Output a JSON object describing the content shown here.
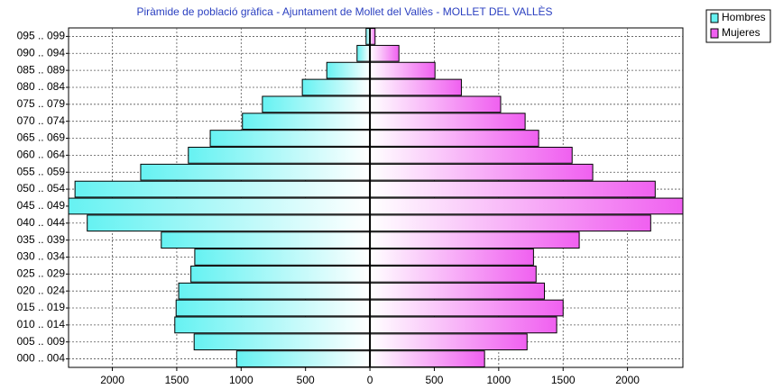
{
  "chart_data": {
    "type": "pyramid",
    "title": "Piràmide de població gràfica - Ajuntament de Mollet del Vallès - MOLLET DEL VALLÈS",
    "categories": [
      "095 .. 099",
      "090 .. 094",
      "085 .. 089",
      "080 .. 084",
      "075 .. 079",
      "070 .. 074",
      "065 .. 069",
      "060 .. 064",
      "055 .. 059",
      "050 .. 054",
      "045 .. 049",
      "040 .. 044",
      "035 .. 039",
      "030 .. 034",
      "025 .. 029",
      "020 .. 024",
      "015 .. 019",
      "010 .. 014",
      "005 .. 009",
      "000 .. 004"
    ],
    "series": [
      {
        "name": "Hombres",
        "color": "#66f2f2",
        "values": [
          -30,
          -100,
          -335,
          -525,
          -835,
          -990,
          -1240,
          -1410,
          -1780,
          -2290,
          -2340,
          -2195,
          -1620,
          -1360,
          -1390,
          -1485,
          -1505,
          -1515,
          -1365,
          -1035
        ]
      },
      {
        "name": "Mujeres",
        "color": "#f060f0",
        "values": [
          40,
          225,
          505,
          710,
          1015,
          1205,
          1310,
          1570,
          1730,
          2215,
          2430,
          2180,
          1625,
          1270,
          1290,
          1355,
          1500,
          1450,
          1220,
          890
        ]
      }
    ],
    "xlim": [
      -2340,
      2430
    ],
    "xticks": [
      {
        "value": -2000,
        "label": "2000"
      },
      {
        "value": -1500,
        "label": "1500"
      },
      {
        "value": -1000,
        "label": "1000"
      },
      {
        "value": -500,
        "label": "500"
      },
      0,
      500,
      1000,
      1500,
      2000
    ],
    "grid": true,
    "legend": "top-right"
  }
}
